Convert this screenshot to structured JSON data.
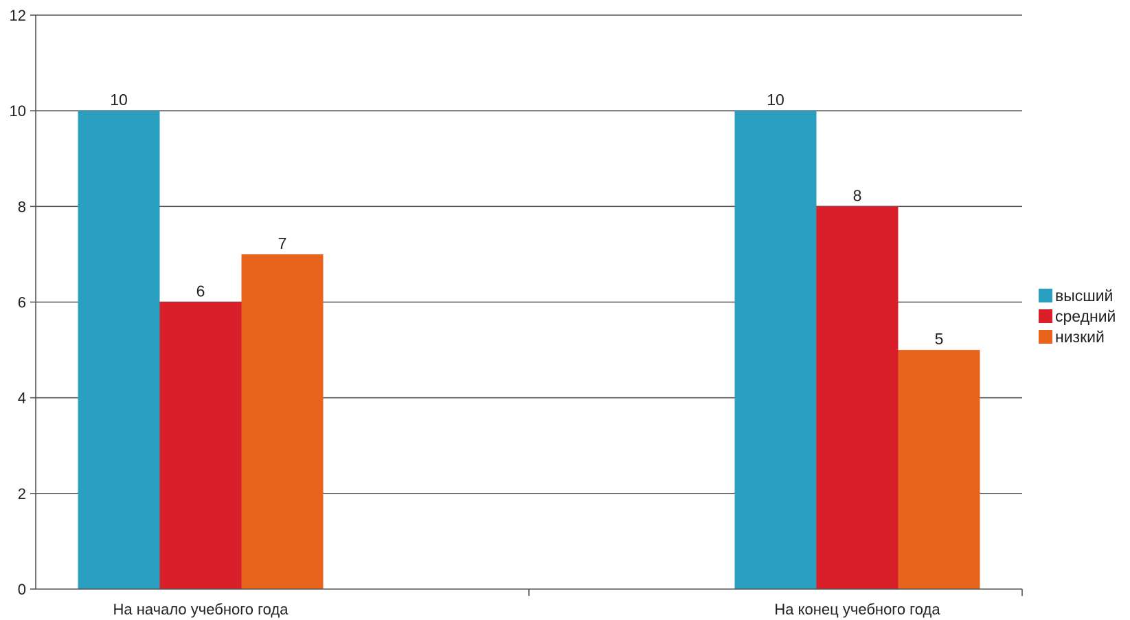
{
  "chart_data": {
    "type": "bar",
    "title": "",
    "xlabel": "",
    "ylabel": "",
    "categories": [
      "На начало учебного года",
      "На конец учебного года"
    ],
    "series": [
      {
        "name": "высший",
        "values": [
          10,
          10
        ],
        "color": "#2a9fc0"
      },
      {
        "name": "средний",
        "values": [
          6,
          8
        ],
        "color": "#d91f2a"
      },
      {
        "name": "низкий",
        "values": [
          7,
          5
        ],
        "color": "#e8641c"
      }
    ],
    "ylim": [
      0,
      12
    ],
    "yticks": [
      0,
      2,
      4,
      6,
      8,
      10,
      12
    ],
    "grid": true,
    "legend_position": "right",
    "data_labels": true
  }
}
